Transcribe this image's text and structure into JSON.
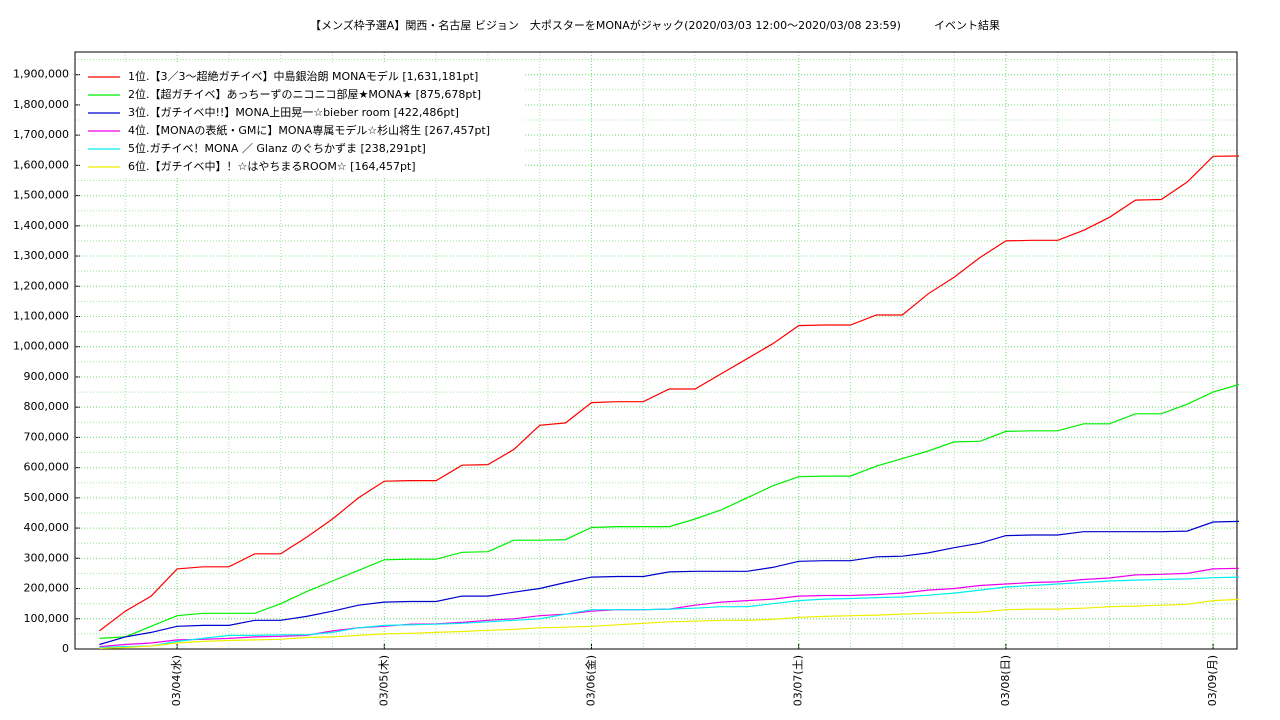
{
  "chart_data": {
    "type": "line",
    "title": "【メンズ枠予選A】関西・名古屋 ビジョン　大ポスターをMONAがジャック(2020/03/03 12:00〜2020/03/08 23:59)　　　イベント結果",
    "categories": [
      null,
      null,
      null,
      "03/04(水)",
      null,
      null,
      null,
      null,
      null,
      null,
      null,
      "03/05(木)",
      null,
      null,
      null,
      null,
      null,
      null,
      null,
      "03/06(金)",
      null,
      null,
      null,
      null,
      null,
      null,
      null,
      "03/07(土)",
      null,
      null,
      null,
      null,
      null,
      null,
      null,
      "03/08(日)",
      null,
      null,
      null,
      null,
      null,
      null,
      null,
      "03/09(月)",
      null
    ],
    "series": [
      {
        "name": "1位.【3／3〜超絶ガチイベ】中島銀治朗 MONAモデル [1,631,181pt]",
        "color": "#ff0000",
        "values": [
          60000,
          125000,
          175000,
          265000,
          272000,
          272000,
          315000,
          315000,
          370000,
          430000,
          500000,
          555000,
          557000,
          557000,
          608000,
          610000,
          660000,
          740000,
          748000,
          815000,
          818000,
          818000,
          860000,
          860000,
          910000,
          960000,
          1010000,
          1070000,
          1072000,
          1072000,
          1105000,
          1105000,
          1175000,
          1230000,
          1295000,
          1350000,
          1352000,
          1352000,
          1385000,
          1428000,
          1485000,
          1487000,
          1545000,
          1630000,
          1631000
        ]
      },
      {
        "name": "2位.【超ガチイベ】あっちーずのニコニコ部屋★MONA★ [875,678pt]",
        "color": "#00ee00",
        "values": [
          35000,
          40000,
          75000,
          110000,
          118000,
          118000,
          118000,
          150000,
          190000,
          225000,
          260000,
          295000,
          297000,
          297000,
          320000,
          322000,
          360000,
          360000,
          362000,
          402000,
          405000,
          405000,
          405000,
          430000,
          460000,
          500000,
          540000,
          570000,
          572000,
          572000,
          605000,
          630000,
          655000,
          685000,
          687000,
          720000,
          722000,
          722000,
          745000,
          745000,
          778000,
          778000,
          810000,
          850000,
          875000
        ]
      },
      {
        "name": "3位.【ガチイベ中!!】MONA上田晃一☆bieber room [422,486pt]",
        "color": "#0000cc",
        "values": [
          15000,
          40000,
          55000,
          75000,
          78000,
          78000,
          95000,
          95000,
          108000,
          125000,
          145000,
          155000,
          157000,
          157000,
          175000,
          175000,
          188000,
          200000,
          220000,
          238000,
          240000,
          240000,
          255000,
          257000,
          257000,
          257000,
          270000,
          290000,
          292000,
          292000,
          305000,
          307000,
          318000,
          335000,
          350000,
          375000,
          377000,
          377000,
          388000,
          388000,
          388000,
          388000,
          390000,
          420000,
          422000
        ]
      },
      {
        "name": "4位.【MONAの表紙・GMに】MONA専属モデル☆杉山将生 [267,457pt]",
        "color": "#ee00ee",
        "values": [
          8000,
          15000,
          20000,
          30000,
          32000,
          35000,
          40000,
          42000,
          45000,
          60000,
          70000,
          75000,
          82000,
          83000,
          88000,
          95000,
          100000,
          110000,
          115000,
          125000,
          130000,
          130000,
          132000,
          145000,
          155000,
          160000,
          165000,
          175000,
          177000,
          177000,
          180000,
          185000,
          195000,
          200000,
          210000,
          215000,
          220000,
          222000,
          230000,
          235000,
          245000,
          247000,
          250000,
          265000,
          267000
        ]
      },
      {
        "name": "5位.ガチイベ！MONA ／ Glanz のぐちかずま [238,291pt]",
        "color": "#00eeee",
        "values": [
          5000,
          8000,
          10000,
          25000,
          35000,
          45000,
          45000,
          47000,
          47000,
          55000,
          70000,
          78000,
          80000,
          82000,
          85000,
          90000,
          95000,
          100000,
          115000,
          130000,
          130000,
          130000,
          132000,
          135000,
          140000,
          140000,
          150000,
          160000,
          165000,
          167000,
          170000,
          172000,
          178000,
          185000,
          195000,
          205000,
          210000,
          215000,
          220000,
          225000,
          228000,
          230000,
          232000,
          236000,
          238000
        ]
      },
      {
        "name": "6位.【ガチイベ中】！☆はやちまるROOM☆ [164,457pt]",
        "color": "#eeee00",
        "values": [
          2000,
          5000,
          10000,
          20000,
          25000,
          28000,
          30000,
          32000,
          38000,
          40000,
          45000,
          50000,
          52000,
          55000,
          58000,
          62000,
          65000,
          70000,
          72000,
          75000,
          80000,
          85000,
          90000,
          92000,
          95000,
          95000,
          98000,
          105000,
          108000,
          110000,
          112000,
          115000,
          118000,
          120000,
          122000,
          130000,
          132000,
          132000,
          135000,
          140000,
          142000,
          145000,
          148000,
          160000,
          164000
        ]
      }
    ],
    "ylim": [
      0,
      1975000
    ],
    "yticks": [
      0,
      {
        "value": 100000,
        "label": "100,000"
      },
      {
        "value": 200000,
        "label": "200,000"
      },
      {
        "value": 300000,
        "label": "300,000"
      },
      {
        "value": 400000,
        "label": "400,000"
      },
      {
        "value": 500000,
        "label": "500,000"
      },
      {
        "value": 600000,
        "label": "600,000"
      },
      {
        "value": 700000,
        "label": "700,000"
      },
      {
        "value": 800000,
        "label": "800,000"
      },
      {
        "value": 900000,
        "label": "900,000"
      },
      {
        "value": 1000000,
        "label": "1,000,000"
      },
      {
        "value": 1100000,
        "label": "1,100,000"
      },
      {
        "value": 1200000,
        "label": "1,200,000"
      },
      {
        "value": 1300000,
        "label": "1,300,000"
      },
      {
        "value": 1400000,
        "label": "1,400,000"
      },
      {
        "value": 1500000,
        "label": "1,500,000"
      },
      {
        "value": 1600000,
        "label": "1,600,000"
      },
      {
        "value": 1700000,
        "label": "1,700,000"
      },
      {
        "value": 1800000,
        "label": "1,800,000"
      },
      {
        "value": 1900000,
        "label": "1,900,000"
      }
    ],
    "grid": true
  }
}
